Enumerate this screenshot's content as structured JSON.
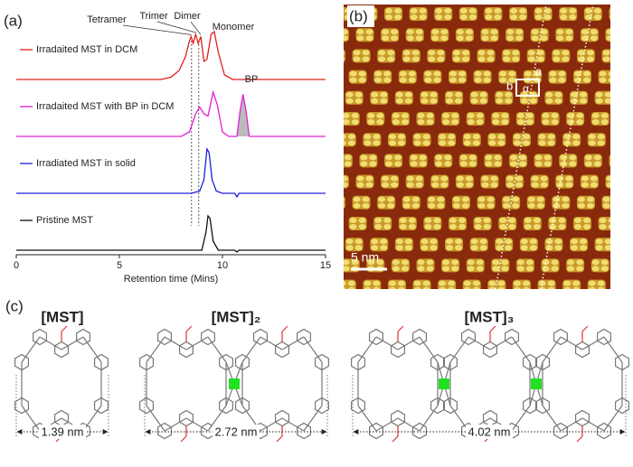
{
  "panel_labels": [
    "(a)",
    "(b)",
    "(c)"
  ],
  "chart_data": {
    "type": "line",
    "xlabel": "Retention time (Mins)",
    "xlim": [
      0,
      15
    ],
    "xticks": [
      0,
      5,
      10,
      15
    ],
    "series": [
      {
        "name": "Irradaited MST in DCM",
        "color": "#e0201c",
        "x": [
          0,
          7,
          7.5,
          7.9,
          8.2,
          8.4,
          8.48,
          8.58,
          8.7,
          8.82,
          8.95,
          9.1,
          9.25,
          9.45,
          9.6,
          9.8,
          10.1,
          10.5,
          15
        ],
        "values": [
          0,
          0,
          0.05,
          0.2,
          0.5,
          0.85,
          0.95,
          0.8,
          1.0,
          0.8,
          0.95,
          0.4,
          0.45,
          1.0,
          1.06,
          0.6,
          0.1,
          0,
          0
        ]
      },
      {
        "name": "Irradaited MST with BP in DCM",
        "color": "#e020d8",
        "x": [
          0,
          8,
          8.4,
          8.7,
          8.9,
          9.1,
          9.3,
          9.55,
          9.75,
          10,
          10.3,
          10.7,
          10.85,
          11.0,
          11.15,
          11.3,
          15
        ],
        "values": [
          0,
          0,
          0.1,
          0.5,
          0.65,
          0.5,
          0.45,
          0.98,
          0.7,
          0.1,
          0,
          0,
          0.55,
          0.93,
          0.55,
          0,
          0
        ]
      },
      {
        "name": "Irradiated MST in solid",
        "color": "#2020e0",
        "x": [
          0,
          8.5,
          8.9,
          9.1,
          9.25,
          9.35,
          9.5,
          9.7,
          10,
          10.6,
          10.7,
          10.8,
          15
        ],
        "values": [
          0,
          0,
          0.05,
          0.3,
          0.98,
          0.9,
          0.3,
          0.05,
          0,
          0,
          -0.08,
          0,
          0
        ]
      },
      {
        "name": "Pristine MST",
        "color": "#111111",
        "x": [
          0,
          9.0,
          9.2,
          9.3,
          9.4,
          9.55,
          9.8,
          10.6,
          10.7,
          10.8,
          15
        ],
        "values": [
          0,
          0,
          0.4,
          0.76,
          0.7,
          0.2,
          0,
          0,
          -0.04,
          0,
          0
        ]
      }
    ],
    "annotations": [
      {
        "text": "Tetramer",
        "x": 8.48,
        "series": 0
      },
      {
        "text": "Trimer",
        "x": 8.7,
        "series": 0
      },
      {
        "text": "Dimer",
        "x": 8.95,
        "series": 0
      },
      {
        "text": "Monomer",
        "x": 9.6,
        "series": 0
      },
      {
        "text": "BP",
        "x": 11.0,
        "series": 1,
        "fill": "#bbbbbb"
      }
    ],
    "guides": [
      8.5,
      8.85
    ]
  },
  "stm": {
    "labels": [
      "a",
      "b",
      "α"
    ],
    "scale_bar": "5 nm"
  },
  "structures": [
    {
      "name": "[MST]",
      "width": "1.39 nm"
    },
    {
      "name": "[MST]₂",
      "width": "2.72 nm"
    },
    {
      "name": "[MST]₃",
      "width": "4.02 nm"
    }
  ]
}
